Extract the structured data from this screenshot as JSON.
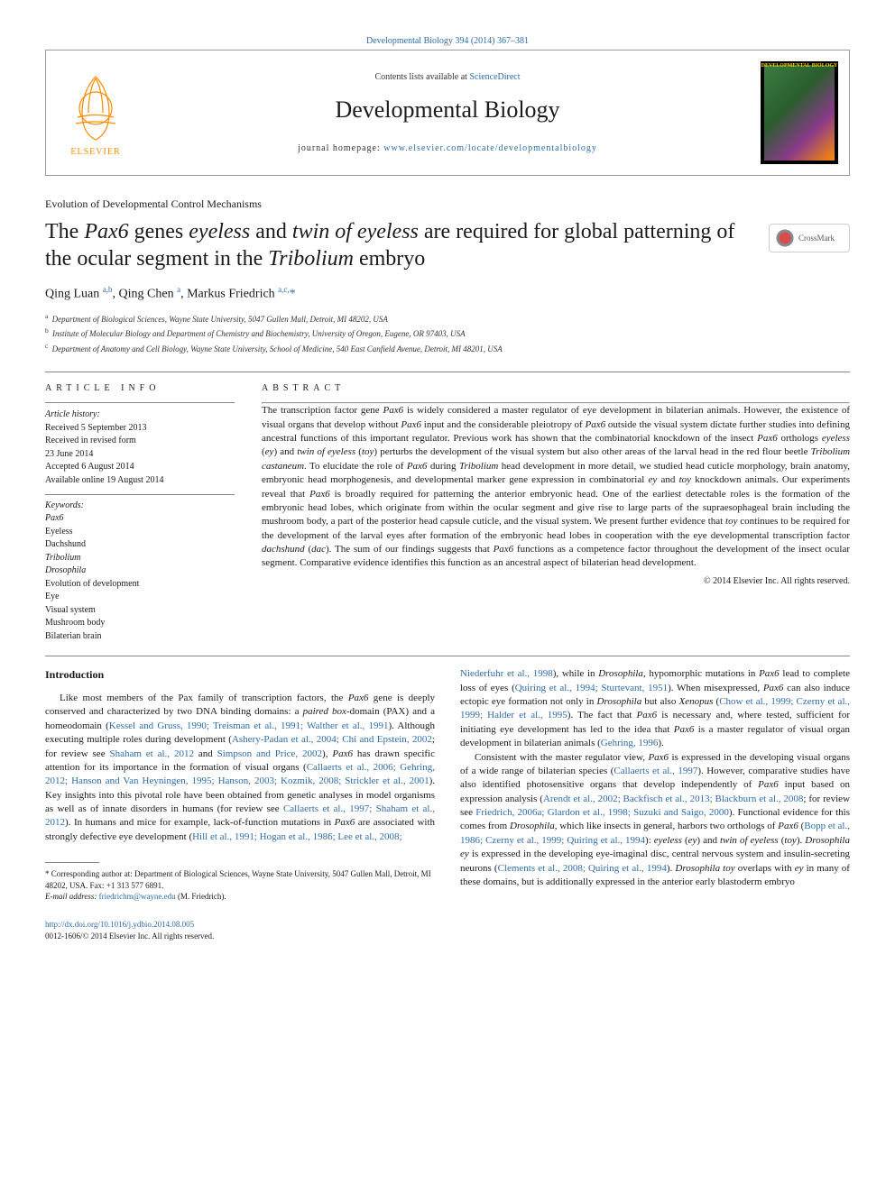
{
  "top_citation": "Developmental Biology 394 (2014) 367–381",
  "header": {
    "contents_prefix": "Contents lists available at ",
    "contents_link": "ScienceDirect",
    "journal_name": "Developmental Biology",
    "homepage_prefix": "journal homepage: ",
    "homepage_url": "www.elsevier.com/locate/developmentalbiology",
    "cover_title": "DEVELOPMENTAL BIOLOGY"
  },
  "section_tag": "Evolution of Developmental Control Mechanisms",
  "title_html": "The <i>Pax6</i> genes <i>eyeless</i> and <i>twin of eyeless</i> are required for global patterning of the ocular segment in the <i>Tribolium</i> embryo",
  "crossmark_label": "CrossMark",
  "authors_html": "Qing Luan <sup>a,b</sup>, Qing Chen <sup>a</sup>, Markus Friedrich <sup>a,c,</sup><span class=\"star\">*</span>",
  "affiliations": [
    {
      "sup": "a",
      "text": "Department of Biological Sciences, Wayne State University, 5047 Gullen Mall, Detroit, MI 48202, USA"
    },
    {
      "sup": "b",
      "text": "Institute of Molecular Biology and Department of Chemistry and Biochemistry, University of Oregon, Eugene, OR 97403, USA"
    },
    {
      "sup": "c",
      "text": "Department of Anatomy and Cell Biology, Wayne State University, School of Medicine, 540 East Canfield Avenue, Detroit, MI 48201, USA"
    }
  ],
  "info_head": "article info",
  "abs_head": "abstract",
  "history": {
    "head": "Article history:",
    "lines": [
      "Received 5 September 2013",
      "Received in revised form",
      "23 June 2014",
      "Accepted 6 August 2014",
      "Available online 19 August 2014"
    ]
  },
  "keywords_head": "Keywords:",
  "keywords": [
    "Pax6",
    "Eyeless",
    "Dachshund",
    "Tribolium",
    "Drosophila",
    "Evolution of development",
    "Eye",
    "Visual system",
    "Mushroom body",
    "Bilaterian brain"
  ],
  "abstract_html": "The transcription factor gene <i>Pax6</i> is widely considered a master regulator of eye development in bilaterian animals. However, the existence of visual organs that develop without <i>Pax6</i> input and the considerable pleiotropy of <i>Pax6</i> outside the visual system dictate further studies into defining ancestral functions of this important regulator. Previous work has shown that the combinatorial knockdown of the insect <i>Pax6</i> orthologs <i>eyeless</i> (<i>ey</i>) and <i>twin of eyeless</i> (<i>toy</i>) perturbs the development of the visual system but also other areas of the larval head in the red flour beetle <i>Tribolium castaneum</i>. To elucidate the role of <i>Pax6</i> during <i>Tribolium</i> head development in more detail, we studied head cuticle morphology, brain anatomy, embryonic head morphogenesis, and developmental marker gene expression in combinatorial <i>ey</i> and <i>toy</i> knockdown animals. Our experiments reveal that <i>Pax6</i> is broadly required for patterning the anterior embryonic head. One of the earliest detectable roles is the formation of the embryonic head lobes, which originate from within the ocular segment and give rise to large parts of the supraesophageal brain including the mushroom body, a part of the posterior head capsule cuticle, and the visual system. We present further evidence that <i>toy</i> continues to be required for the development of the larval eyes after formation of the embryonic head lobes in cooperation with the eye developmental transcription factor <i>dachshund</i> (<i>dac</i>). The sum of our findings suggests that <i>Pax6</i> functions as a competence factor throughout the development of the insect ocular segment. Comparative evidence identifies this function as an ancestral aspect of bilaterian head development.",
  "copyright": "© 2014 Elsevier Inc. All rights reserved.",
  "intro_head": "Introduction",
  "para1_html": "Like most members of the Pax family of transcription factors, the <i>Pax6</i> gene is deeply conserved and characterized by two DNA binding domains: a <i>paired box</i>-domain (PAX) and a homeodomain (<a>Kessel and Gruss, 1990; Treisman et al., 1991; Walther et al., 1991</a>). Although executing multiple roles during development (<a>Ashery-Padan et al., 2004; Chi and Epstein, 2002</a>; for review see <a>Shaham et al., 2012</a> and <a>Simpson and Price, 2002</a>), <i>Pax6</i> has drawn specific attention for its importance in the formation of visual organs (<a>Callaerts et al., 2006; Gehring, 2012; Hanson and Van Heyningen, 1995; Hanson, 2003; Kozmik, 2008; Strickler et al., 2001</a>). Key insights into this pivotal role have been obtained from genetic analyses in model organisms as well as of innate disorders in humans (for review see <a>Callaerts et al., 1997; Shaham et al., 2012</a>). In humans and mice for example, lack-of-function mutations in <i>Pax6</i> are associated with strongly defective eye development (<a>Hill et al., 1991; Hogan et al., 1986; Lee et al., 2008;</a>",
  "para1b_html": "<a>Niederfuhr et al., 1998</a>), while in <i>Drosophila</i>, hypomorphic mutations in <i>Pax6</i> lead to complete loss of eyes (<a>Quiring et al., 1994; Sturtevant, 1951</a>). When misexpressed, <i>Pax6</i> can also induce ectopic eye formation not only in <i>Drosophila</i> but also <i>Xenopus</i> (<a>Chow et al., 1999; Czerny et al., 1999; Halder et al., 1995</a>). The fact that <i>Pax6</i> is necessary and, where tested, sufficient for initiating eye development has led to the idea that <i>Pax6</i> is a master regulator of visual organ development in bilaterian animals (<a>Gehring, 1996</a>).",
  "para2_html": "Consistent with the master regulator view, <i>Pax6</i> is expressed in the developing visual organs of a wide range of bilaterian species (<a>Callaerts et al., 1997</a>). However, comparative studies have also identified photosensitive organs that develop independently of <i>Pax6</i> input based on expression analysis (<a>Arendt et al., 2002; Backfisch et al., 2013; Blackburn et al., 2008</a>; for review see <a>Friedrich, 2006a; Glardon et al., 1998; Suzuki and Saigo, 2000</a>). Functional evidence for this comes from <i>Drosophila</i>, which like insects in general, harbors two orthologs of <i>Pax6</i> (<a>Bopp et al., 1986; Czerny et al., 1999; Quiring et al., 1994</a>): <i>eyeless</i> (<i>ey</i>) and <i>twin of eyeless</i> (<i>toy</i>). <i>Drosophila ey</i> is expressed in the developing eye-imaginal disc, central nervous system and insulin-secreting neurons (<a>Clements et al., 2008; Quiring et al., 1994</a>). <i>Drosophila toy</i> overlaps with <i>ey</i> in many of these domains, but is additionally expressed in the anterior early blastoderm embryo",
  "footnote": {
    "corresp": "* Corresponding author at: Department of Biological Sciences, Wayne State University, 5047 Gullen Mall, Detroit, MI 48202, USA. Fax: +1 313 577 6891.",
    "email_label": "E-mail address:",
    "email": "friedrichm@wayne.edu",
    "email_name": "(M. Friedrich)."
  },
  "footer": {
    "doi": "http://dx.doi.org/10.1016/j.ydbio.2014.08.005",
    "issn_line": "0012-1606/© 2014 Elsevier Inc. All rights reserved."
  },
  "colors": {
    "link": "#2e6ca8",
    "text": "#1a1a1a",
    "rule": "#888888",
    "elsevier_orange": "#ff8a00",
    "elsevier_border": "#c8c8c8"
  }
}
